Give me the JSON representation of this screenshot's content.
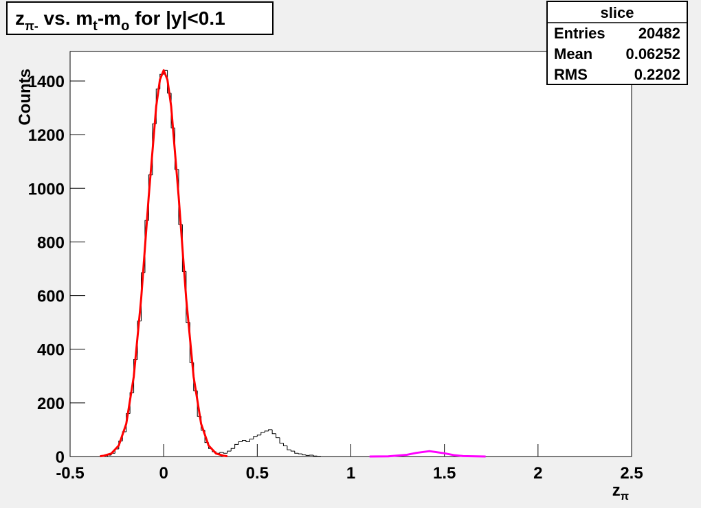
{
  "chart_data": {
    "type": "histogram",
    "title_parts": [
      "z",
      "π-",
      " vs. m",
      "t",
      "-m",
      "o",
      " for |y|<0.1"
    ],
    "xlabel_parts": [
      "z",
      "π"
    ],
    "ylabel": "Counts",
    "bins": [
      -0.3,
      -0.28,
      -0.26,
      -0.24,
      -0.22,
      -0.2,
      -0.18,
      -0.16,
      -0.14,
      -0.12,
      -0.1,
      -0.08,
      -0.06,
      -0.04,
      -0.02,
      0,
      0.02,
      0.04,
      0.06,
      0.08,
      0.1,
      0.12,
      0.14,
      0.16,
      0.18,
      0.2,
      0.22,
      0.24,
      0.26,
      0.28,
      0.3,
      0.32,
      0.34,
      0.36,
      0.38,
      0.4,
      0.42,
      0.44,
      0.46,
      0.48,
      0.5,
      0.52,
      0.54,
      0.56,
      0.58,
      0.6,
      0.62,
      0.64,
      0.66,
      0.68,
      0.7,
      0.72,
      0.74,
      0.76,
      0.78,
      0.8,
      0.82,
      0.84,
      0.86
    ],
    "values": [
      5,
      12,
      28,
      58,
      92,
      160,
      238,
      362,
      505,
      685,
      880,
      1050,
      1240,
      1370,
      1425,
      1440,
      1355,
      1225,
      1070,
      865,
      690,
      500,
      350,
      245,
      150,
      98,
      52,
      30,
      18,
      12,
      15,
      12,
      20,
      30,
      45,
      55,
      60,
      55,
      65,
      75,
      80,
      90,
      95,
      100,
      85,
      70,
      50,
      40,
      25,
      20,
      12,
      10,
      6,
      4,
      5,
      2,
      1,
      0
    ],
    "color": "#000000",
    "fits": [
      {
        "color": "#ff0000",
        "x": [
          -0.34,
          -0.32,
          -0.28,
          -0.24,
          -0.2,
          -0.16,
          -0.12,
          -0.08,
          -0.04,
          -0.02,
          0,
          0.02,
          0.04,
          0.08,
          0.12,
          0.16,
          0.2,
          0.24,
          0.28,
          0.32,
          0.34
        ],
        "values": [
          1,
          3,
          11,
          41,
          122,
          297,
          591,
          969,
          1305,
          1405,
          1440,
          1405,
          1305,
          969,
          591,
          297,
          122,
          41,
          11,
          3,
          1
        ]
      },
      {
        "color": "#ff00ff",
        "x": [
          1.1,
          1.2,
          1.3,
          1.35,
          1.42,
          1.5,
          1.55,
          1.6,
          1.72
        ],
        "values": [
          0,
          0.5,
          6.5,
          13.6,
          20,
          12,
          5.3,
          1.6,
          0
        ]
      }
    ],
    "xlim": [
      -0.5,
      2.5
    ],
    "xticks": [
      -0.5,
      0,
      0.5,
      1,
      1.5,
      2,
      2.5
    ],
    "ylim": [
      0,
      1510
    ],
    "yticks": [
      0,
      200,
      400,
      600,
      800,
      1000,
      1200,
      1400
    ],
    "stats": {
      "title": "slice",
      "rows": [
        [
          "Entries",
          20482
        ],
        [
          "Mean",
          0.06252
        ],
        [
          "RMS",
          0.2202
        ]
      ]
    }
  }
}
